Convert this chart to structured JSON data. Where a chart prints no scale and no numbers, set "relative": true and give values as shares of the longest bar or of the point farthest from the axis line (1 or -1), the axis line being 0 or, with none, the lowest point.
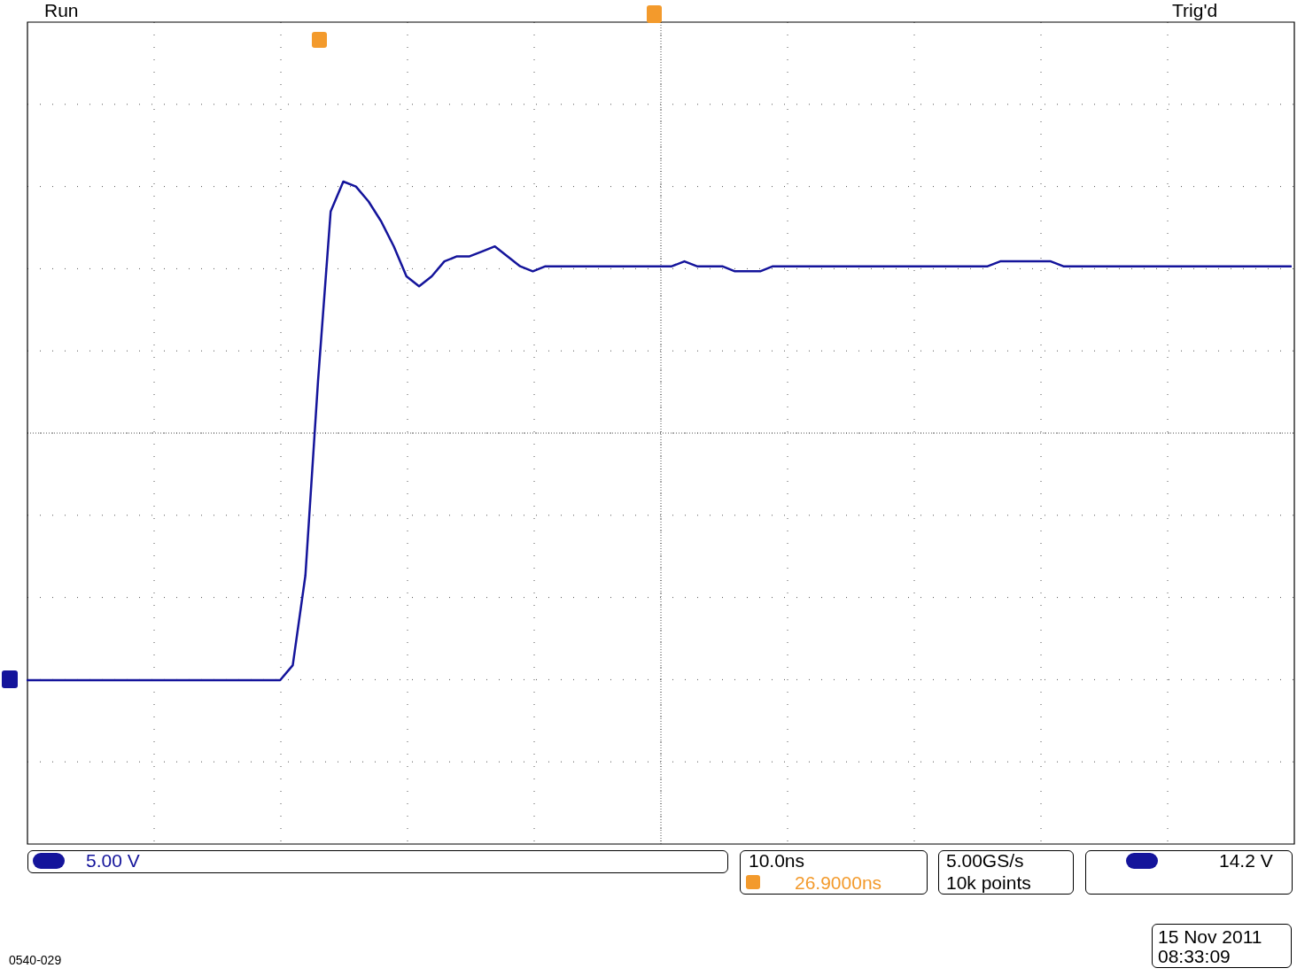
{
  "chart_data": {
    "type": "line",
    "relative": true,
    "grid": true,
    "marker": "none",
    "line_style": "solid",
    "categories": [
      null,
      null,
      null,
      null,
      null,
      null,
      null,
      null,
      null,
      null,
      null,
      null,
      null,
      null,
      null,
      null,
      null,
      null,
      null,
      null,
      null,
      null,
      null,
      null,
      null,
      null,
      null,
      null,
      null,
      null,
      null,
      null,
      null,
      null,
      null,
      null,
      null,
      null,
      null,
      null,
      null,
      null,
      null,
      null,
      null,
      null,
      null,
      null,
      null,
      null,
      null,
      null,
      null,
      null,
      null,
      null,
      null,
      null,
      null,
      null,
      null,
      null,
      null,
      null,
      null,
      null,
      null,
      null,
      null,
      null,
      null,
      null,
      null,
      null,
      null,
      null,
      null,
      null,
      null,
      null,
      null,
      null,
      null,
      null,
      null,
      null,
      null,
      null,
      null,
      null,
      null,
      null,
      null,
      null,
      null,
      null,
      null,
      null,
      null,
      null,
      null
    ],
    "series": [
      {
        "color": "#14149b",
        "values": [
          0,
          0,
          0,
          0,
          0,
          0,
          0,
          0,
          0,
          0,
          0,
          0,
          0,
          0,
          0,
          0,
          0,
          0,
          0,
          0,
          0,
          0.03,
          0.21,
          0.6,
          0.94,
          1,
          0.99,
          0.96,
          0.92,
          0.87,
          0.81,
          0.79,
          0.81,
          0.84,
          0.85,
          0.85,
          0.86,
          0.87,
          0.85,
          0.83,
          0.82,
          0.83,
          0.83,
          0.83,
          0.83,
          0.83,
          0.83,
          0.83,
          0.83,
          0.83,
          0.83,
          0.83,
          0.84,
          0.83,
          0.83,
          0.83,
          0.82,
          0.82,
          0.82,
          0.83,
          0.83,
          0.83,
          0.83,
          0.83,
          0.83,
          0.83,
          0.83,
          0.83,
          0.83,
          0.83,
          0.83,
          0.83,
          0.83,
          0.83,
          0.83,
          0.83,
          0.83,
          0.84,
          0.84,
          0.84,
          0.84,
          0.84,
          0.83,
          0.83,
          0.83,
          0.83,
          0.83,
          0.83,
          0.83,
          0.83,
          0.83,
          0.83,
          0.83,
          0.83,
          0.83,
          0.83,
          0.83,
          0.83,
          0.83,
          0.83,
          0.83
        ]
      }
    ],
    "annotations": [
      "Run",
      "Trig'd",
      "5.00 V",
      "10.0ns",
      "26.9000ns",
      "5.00GS/s",
      "10k points",
      "14.2 V",
      "15 Nov 2011",
      "08:33:09",
      "0540-029"
    ]
  }
}
